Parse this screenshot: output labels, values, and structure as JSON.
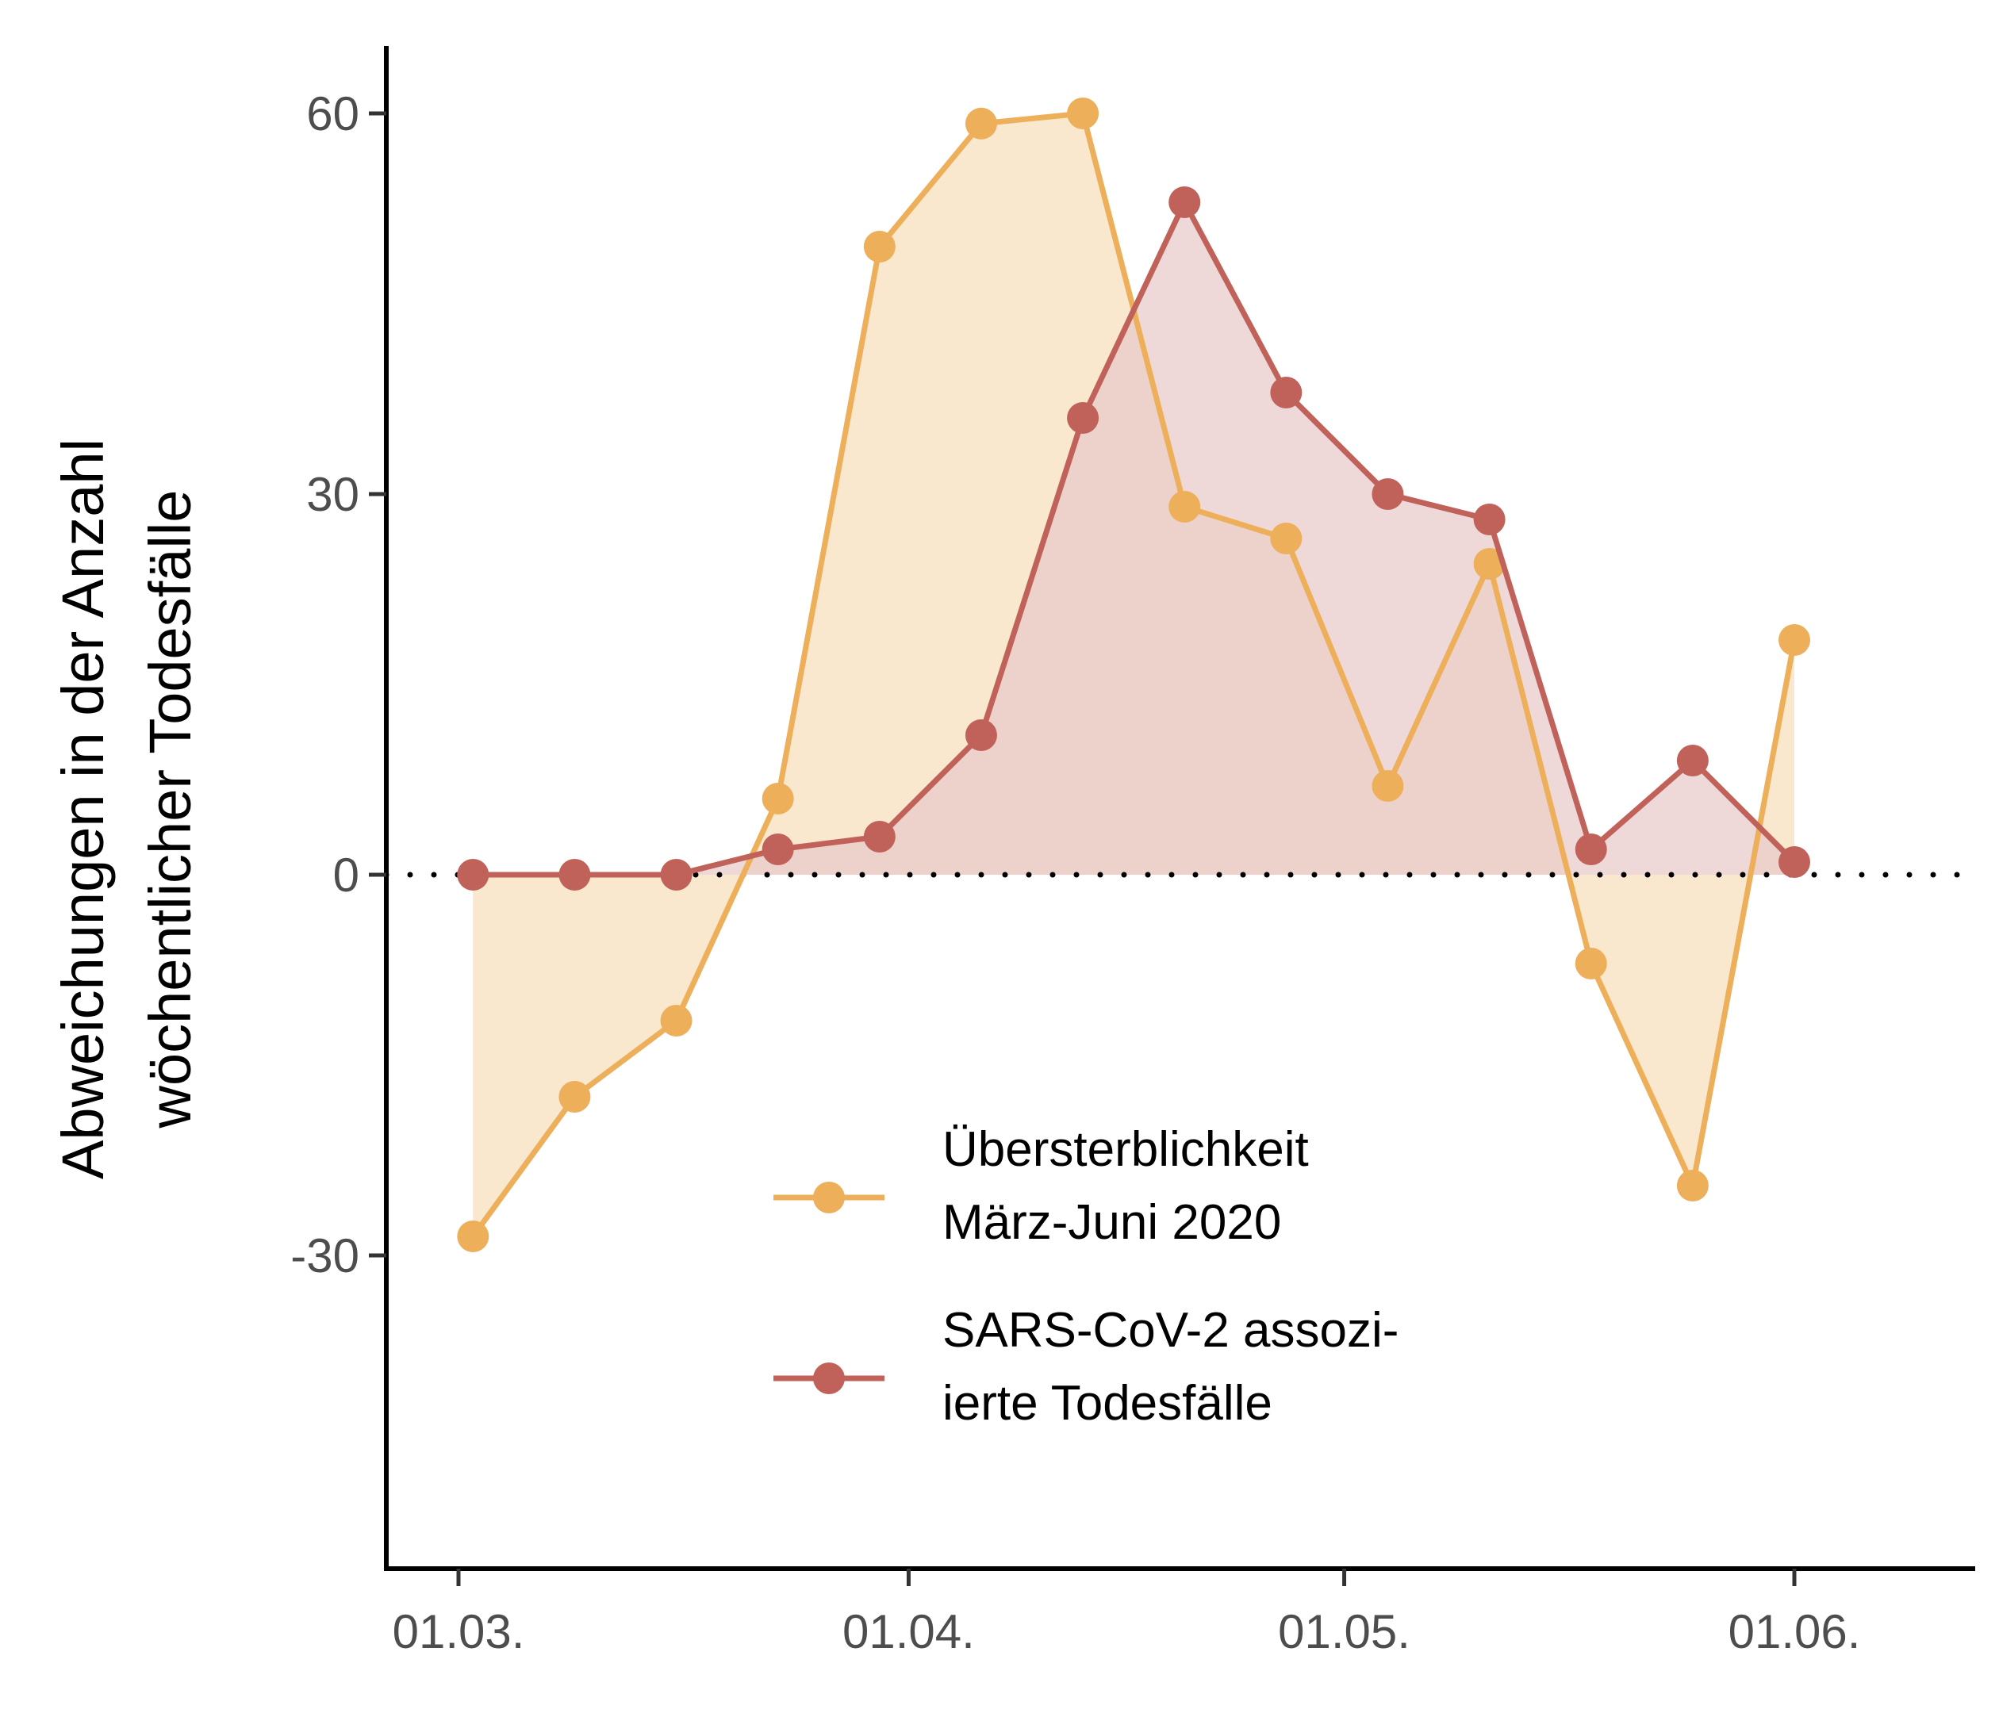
{
  "chart_data": {
    "type": "line",
    "ylabel": [
      "Abweichungen in der Anzahl",
      "wöchentlicher Todesfälle"
    ],
    "xlabel": "",
    "x_ticks": [
      {
        "date": "2020-03-01",
        "label": "01.03."
      },
      {
        "date": "2020-04-01",
        "label": "01.04."
      },
      {
        "date": "2020-05-01",
        "label": "01.05."
      },
      {
        "date": "2020-06-01",
        "label": "01.06."
      }
    ],
    "y_ticks": [
      -30,
      0,
      30,
      60
    ],
    "xlim": [
      "2020-02-27",
      "2020-06-13"
    ],
    "ylim": [
      -55,
      65
    ],
    "reference_line": {
      "y": 0,
      "style": "dotted"
    },
    "series": [
      {
        "name": [
          "Übersterblichkeit",
          "März-Juni 2020"
        ],
        "color": "#EDAF5A",
        "fill_color": "#F8E3C6",
        "points": [
          {
            "x": "2020-03-02",
            "y": -28.5
          },
          {
            "x": "2020-03-09",
            "y": -17.5
          },
          {
            "x": "2020-03-16",
            "y": -11.5
          },
          {
            "x": "2020-03-23",
            "y": 6
          },
          {
            "x": "2020-03-30",
            "y": 49.5
          },
          {
            "x": "2020-04-06",
            "y": 59.2
          },
          {
            "x": "2020-04-13",
            "y": 60
          },
          {
            "x": "2020-04-20",
            "y": 29
          },
          {
            "x": "2020-04-27",
            "y": 26.5
          },
          {
            "x": "2020-05-04",
            "y": 7
          },
          {
            "x": "2020-05-11",
            "y": 24.5
          },
          {
            "x": "2020-05-18",
            "y": -7
          },
          {
            "x": "2020-05-25",
            "y": -24.5
          },
          {
            "x": "2020-06-01",
            "y": 18.5
          }
        ]
      },
      {
        "name": [
          "SARS-CoV-2 assozi-",
          "ierte Todesfälle"
        ],
        "color": "#C0625A",
        "fill_color": "#E8CBCB",
        "points": [
          {
            "x": "2020-03-02",
            "y": 0
          },
          {
            "x": "2020-03-09",
            "y": 0
          },
          {
            "x": "2020-03-16",
            "y": 0
          },
          {
            "x": "2020-03-23",
            "y": 2
          },
          {
            "x": "2020-03-30",
            "y": 3
          },
          {
            "x": "2020-04-06",
            "y": 11
          },
          {
            "x": "2020-04-13",
            "y": 36
          },
          {
            "x": "2020-04-20",
            "y": 53
          },
          {
            "x": "2020-04-27",
            "y": 38
          },
          {
            "x": "2020-05-04",
            "y": 30
          },
          {
            "x": "2020-05-11",
            "y": 28
          },
          {
            "x": "2020-05-18",
            "y": 2
          },
          {
            "x": "2020-05-25",
            "y": 9
          },
          {
            "x": "2020-06-01",
            "y": 1
          }
        ]
      }
    ],
    "legend": {
      "position": "bottom-center"
    }
  }
}
